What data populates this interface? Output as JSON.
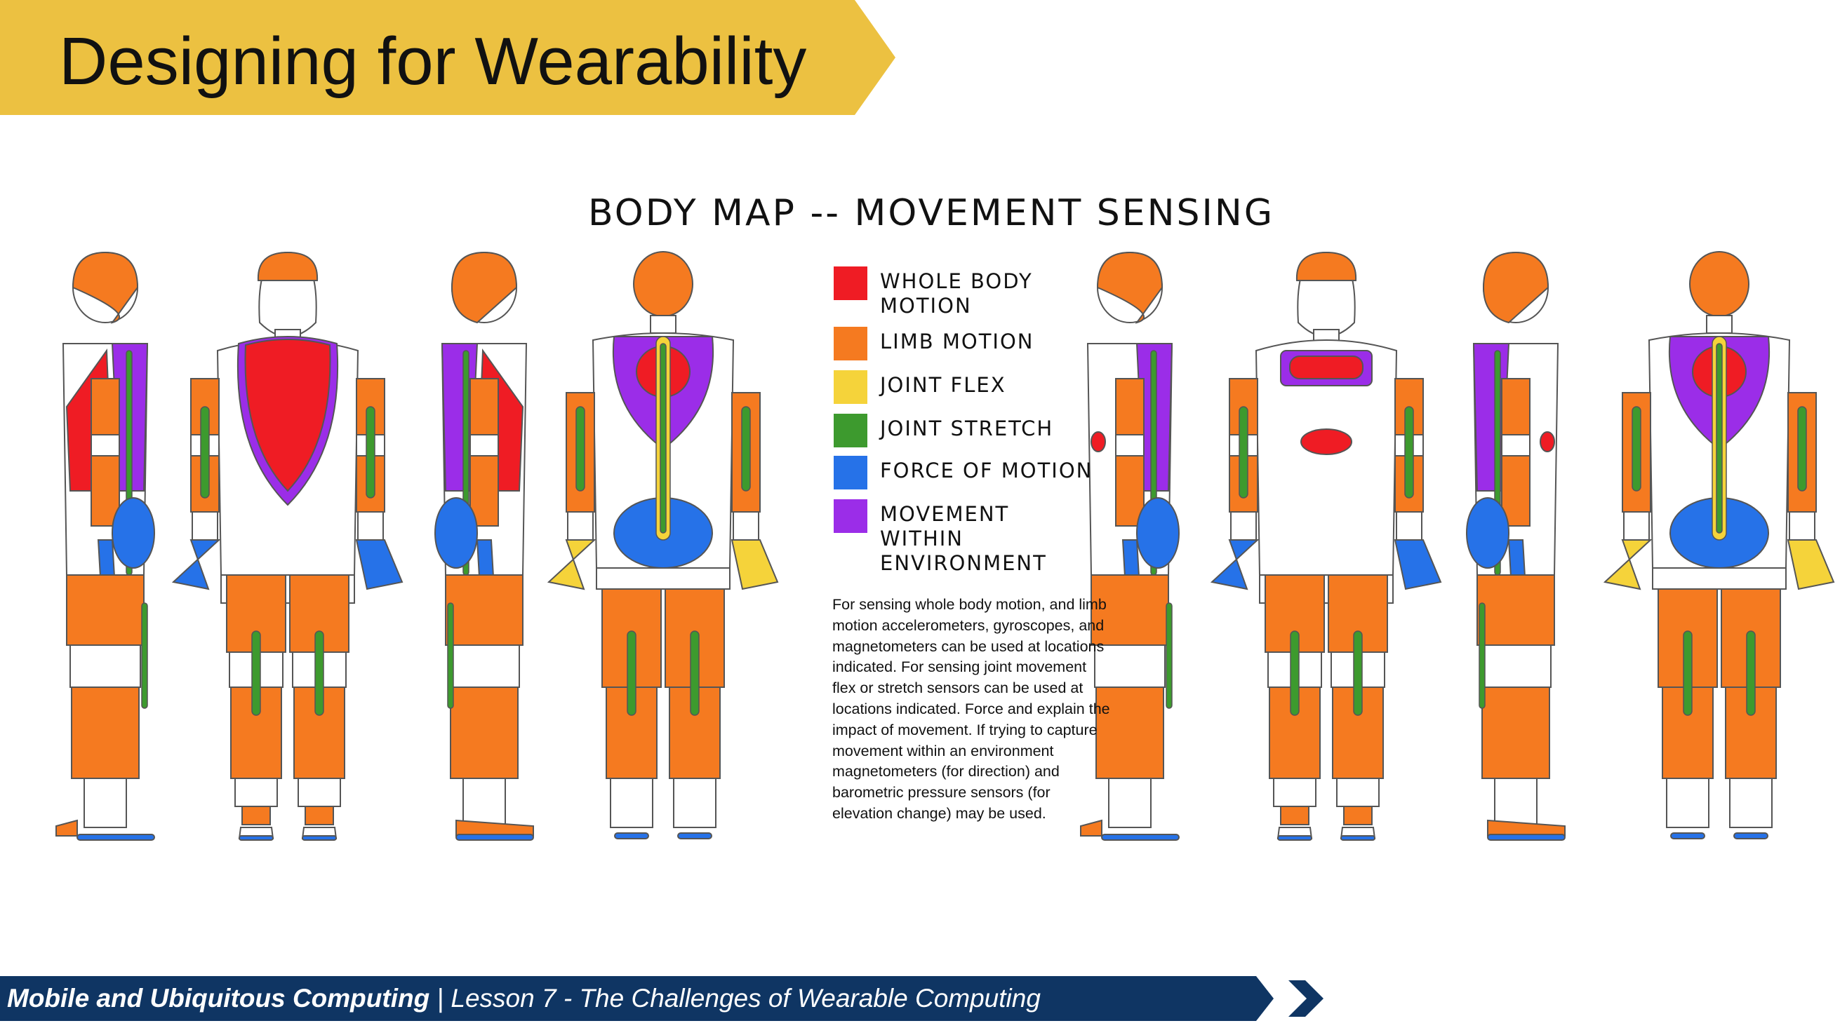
{
  "slide": {
    "title": "Designing for Wearability",
    "banner_color": "#ECC141",
    "footer_color": "#0F3563"
  },
  "body_map": {
    "title": "BODY MAP -- MOVEMENT SENSING",
    "legend": [
      {
        "label": "WHOLE BODY MOTION",
        "color": "#EF1C24"
      },
      {
        "label": "LIMB MOTION",
        "color": "#F57A20"
      },
      {
        "label": "JOINT FLEX",
        "color": "#F5D33A"
      },
      {
        "label": "JOINT STRETCH",
        "color": "#3D9A2E"
      },
      {
        "label": "FORCE OF MOTION",
        "color": "#2672E8"
      },
      {
        "label": "MOVEMENT WITHIN ENVIRONMENT",
        "color": "#9B2DE8"
      }
    ],
    "description": "For sensing whole body motion, and limb motion accelerometers, gyroscopes, and magnetometers can be used at locations indicated. For sensing joint movement flex or stretch sensors can be used at locations indicated. Force and explain the impact of movement. If trying to capture movement within an environment magnetometers (for direction) and barometric pressure sensors (for elevation change) may be used.",
    "figures": [
      {
        "view": "male-side-left"
      },
      {
        "view": "male-front"
      },
      {
        "view": "male-side-right"
      },
      {
        "view": "male-back"
      },
      {
        "view": "female-side-left"
      },
      {
        "view": "female-front"
      },
      {
        "view": "female-side-right"
      },
      {
        "view": "female-back"
      }
    ]
  },
  "footer": {
    "course": "Mobile and Ubiquitous Computing",
    "separator": "|",
    "lesson": "Lesson 7 - The Challenges of Wearable Computing"
  }
}
